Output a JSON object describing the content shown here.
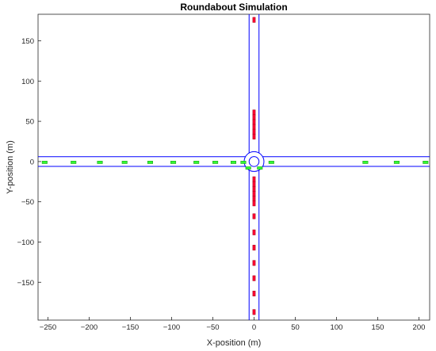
{
  "chart_data": {
    "type": "scatter",
    "title": "Roundabout Simulation",
    "xlabel": "X-position (m)",
    "ylabel": "Y-position (m)",
    "xlim": [
      -262,
      213
    ],
    "ylim": [
      -197,
      183
    ],
    "xticks": [
      -250,
      -200,
      -150,
      -100,
      -50,
      0,
      50,
      100,
      150,
      200
    ],
    "yticks": [
      -150,
      -100,
      -50,
      0,
      50,
      100,
      150
    ],
    "grid": false,
    "roads": {
      "lane_half_width": 6,
      "horizontal_extent": [
        -262,
        213
      ],
      "vertical_extent": [
        -197,
        183
      ],
      "roundabout_outer_radius": 12,
      "roundabout_inner_radius": 6,
      "color": "#0000ff"
    },
    "series": [
      {
        "color": "#ff0033",
        "marker": "vertical-rectangle",
        "points": [
          [
            0,
            176
          ],
          [
            0,
            61
          ],
          [
            0,
            55
          ],
          [
            0,
            49
          ],
          [
            0,
            43
          ],
          [
            0,
            37
          ],
          [
            0,
            31
          ],
          [
            0,
            -22
          ],
          [
            0,
            -28
          ],
          [
            0,
            -34
          ],
          [
            0,
            -40
          ],
          [
            0,
            -46
          ],
          [
            0,
            -52
          ],
          [
            0,
            -68
          ],
          [
            0,
            -88
          ],
          [
            0,
            -107
          ],
          [
            0,
            -126
          ],
          [
            0,
            -145
          ],
          [
            0,
            -164
          ],
          [
            0,
            -187
          ]
        ]
      },
      {
        "color": "#33ff33",
        "marker": "horizontal-rectangle",
        "points": [
          [
            -254,
            -1
          ],
          [
            -219,
            -1
          ],
          [
            -187,
            -1
          ],
          [
            -157,
            -1
          ],
          [
            -126,
            -1
          ],
          [
            -98,
            -1
          ],
          [
            -70,
            -1
          ],
          [
            -47,
            -1
          ],
          [
            -25,
            -1
          ],
          [
            -13,
            -1
          ],
          [
            -7,
            -8
          ],
          [
            7,
            -8
          ],
          [
            21,
            -1
          ],
          [
            135,
            -1
          ],
          [
            173,
            -1
          ],
          [
            208,
            -1
          ]
        ]
      }
    ]
  }
}
